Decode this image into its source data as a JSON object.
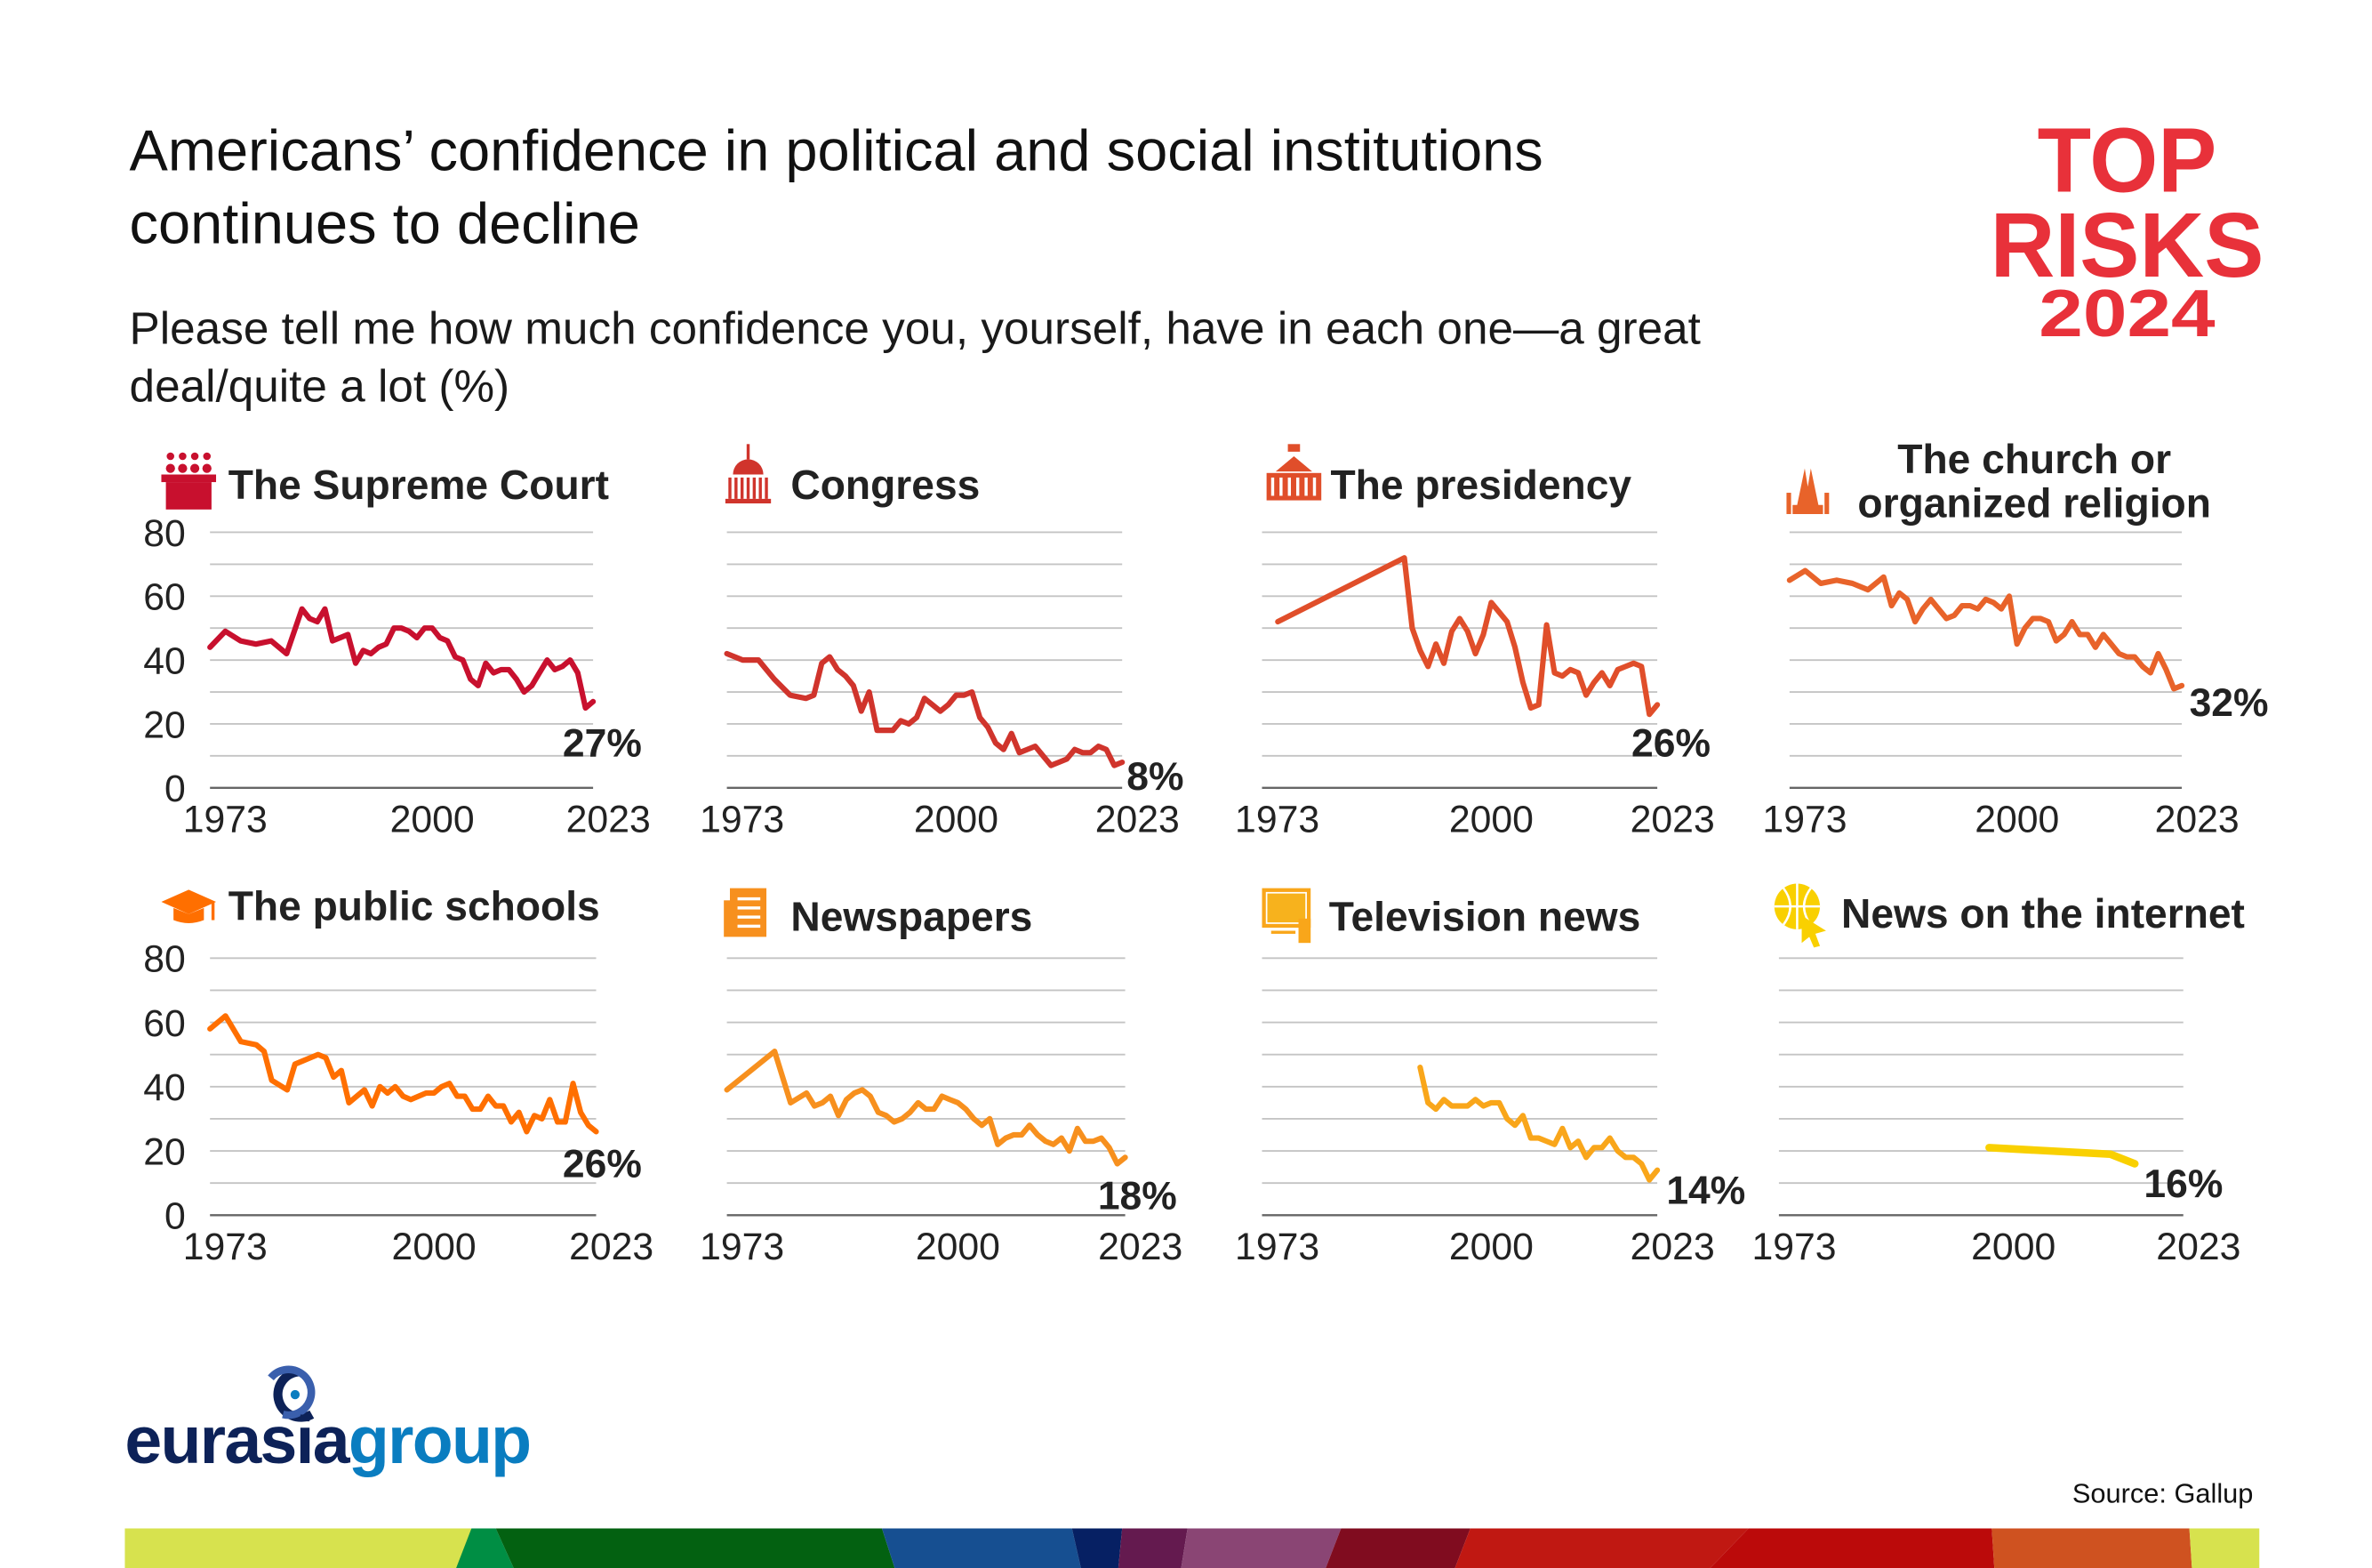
{
  "header": {
    "title_lines": [
      "Americans’ confidence in political and social institutions",
      "continues to decline"
    ],
    "subtitle_lines": [
      "Please tell me how much confidence you, yourself, have in each one—a great",
      "deal/quite a lot (%)"
    ]
  },
  "brand": {
    "top_risks_lines": [
      "TOP",
      "RISKS",
      "2024"
    ],
    "top_risks_color": "#e8313a",
    "logo_text_a": "eurasia",
    "logo_text_b": "group",
    "logo_color_a": "#0d2258",
    "logo_color_b": "#0a7dc0"
  },
  "footer": {
    "source": "Source: Gallup"
  },
  "chart_data": [
    {
      "type": "line",
      "title_lines": [
        "The Supreme Court"
      ],
      "icon": "supreme-court-icon",
      "color": "#c8102e",
      "end_label": "27%",
      "xlim": [
        1973,
        2023
      ],
      "ylim": [
        0,
        80
      ],
      "yticks": [
        "0",
        "20",
        "40",
        "60",
        "80"
      ],
      "xticks": [
        "1973",
        "2000",
        "2023"
      ],
      "grid": true,
      "x": [
        1973,
        1975,
        1977,
        1979,
        1981,
        1983,
        1985,
        1986,
        1987,
        1988,
        1989,
        1990,
        1991,
        1992,
        1993,
        1994,
        1995,
        1996,
        1997,
        1998,
        1999,
        2000,
        2001,
        2002,
        2003,
        2004,
        2005,
        2006,
        2007,
        2008,
        2009,
        2010,
        2011,
        2012,
        2013,
        2014,
        2015,
        2016,
        2017,
        2018,
        2019,
        2020,
        2021,
        2022,
        2023
      ],
      "y": [
        44,
        49,
        46,
        45,
        46,
        42,
        56,
        53,
        52,
        56,
        46,
        47,
        48,
        39,
        43,
        42,
        44,
        45,
        50,
        50,
        49,
        47,
        50,
        50,
        47,
        46,
        41,
        40,
        34,
        32,
        39,
        36,
        37,
        37,
        34,
        30,
        32,
        36,
        40,
        37,
        38,
        40,
        36,
        25,
        27
      ]
    },
    {
      "type": "line",
      "title_lines": [
        "Congress"
      ],
      "icon": "capitol-icon",
      "color": "#d0342c",
      "end_label": "8%",
      "xlim": [
        1973,
        2023
      ],
      "ylim": [
        0,
        80
      ],
      "xticks": [
        "1973",
        "2000",
        "2023"
      ],
      "grid": true,
      "x": [
        1973,
        1975,
        1977,
        1979,
        1981,
        1983,
        1984,
        1985,
        1986,
        1987,
        1988,
        1989,
        1990,
        1991,
        1992,
        1993,
        1994,
        1995,
        1996,
        1997,
        1998,
        1999,
        2000,
        2001,
        2002,
        2003,
        2004,
        2005,
        2006,
        2007,
        2008,
        2009,
        2010,
        2011,
        2012,
        2013,
        2014,
        2015,
        2016,
        2017,
        2018,
        2019,
        2020,
        2021,
        2022,
        2023
      ],
      "y": [
        42,
        40,
        40,
        34,
        29,
        28,
        29,
        39,
        41,
        37,
        35,
        32,
        24,
        30,
        18,
        18,
        18,
        21,
        20,
        22,
        28,
        26,
        24,
        26,
        29,
        29,
        30,
        22,
        19,
        14,
        12,
        17,
        11,
        12,
        13,
        10,
        7,
        8,
        9,
        12,
        11,
        11,
        13,
        12,
        7,
        8
      ]
    },
    {
      "type": "line",
      "title_lines": [
        "The presidency"
      ],
      "icon": "white-house-icon",
      "color": "#e04e2a",
      "end_label": "26%",
      "xlim": [
        1973,
        2023
      ],
      "ylim": [
        0,
        80
      ],
      "xticks": [
        "1973",
        "2000",
        "2023"
      ],
      "grid": true,
      "x": [
        1975,
        1991,
        1992,
        1993,
        1994,
        1995,
        1996,
        1997,
        1998,
        1999,
        2000,
        2001,
        2002,
        2003,
        2004,
        2005,
        2006,
        2007,
        2008,
        2009,
        2010,
        2011,
        2012,
        2013,
        2014,
        2015,
        2016,
        2017,
        2018,
        2019,
        2020,
        2021,
        2022,
        2023
      ],
      "y": [
        52,
        72,
        50,
        43,
        38,
        45,
        39,
        49,
        53,
        49,
        42,
        48,
        58,
        55,
        52,
        44,
        33,
        25,
        26,
        51,
        36,
        35,
        37,
        36,
        29,
        33,
        36,
        32,
        37,
        38,
        39,
        38,
        23,
        26
      ]
    },
    {
      "type": "line",
      "title_lines": [
        "The church or",
        "organized religion"
      ],
      "icon": "praying-hands-icon",
      "color": "#e8632a",
      "end_label": "32%",
      "xlim": [
        1973,
        2023
      ],
      "ylim": [
        0,
        80
      ],
      "xticks": [
        "1973",
        "2000",
        "2023"
      ],
      "grid": true,
      "x": [
        1973,
        1975,
        1977,
        1979,
        1981,
        1983,
        1985,
        1986,
        1987,
        1988,
        1989,
        1990,
        1991,
        1993,
        1994,
        1995,
        1996,
        1997,
        1998,
        1999,
        2000,
        2001,
        2002,
        2003,
        2004,
        2005,
        2006,
        2007,
        2008,
        2009,
        2010,
        2011,
        2012,
        2013,
        2014,
        2015,
        2016,
        2017,
        2018,
        2019,
        2020,
        2021,
        2022,
        2023
      ],
      "y": [
        65,
        68,
        64,
        65,
        64,
        62,
        66,
        57,
        61,
        59,
        52,
        56,
        59,
        53,
        54,
        57,
        57,
        56,
        59,
        58,
        56,
        60,
        45,
        50,
        53,
        53,
        52,
        46,
        48,
        52,
        48,
        48,
        44,
        48,
        45,
        42,
        41,
        41,
        38,
        36,
        42,
        37,
        31,
        32
      ]
    },
    {
      "type": "line",
      "title_lines": [
        "The public schools"
      ],
      "icon": "graduation-cap-icon",
      "color": "#ff6f00",
      "end_label": "26%",
      "xlim": [
        1973,
        2023
      ],
      "ylim": [
        0,
        80
      ],
      "yticks": [
        "0",
        "20",
        "40",
        "60",
        "80"
      ],
      "xticks": [
        "1973",
        "2000",
        "2023"
      ],
      "grid": true,
      "x": [
        1973,
        1975,
        1977,
        1979,
        1980,
        1981,
        1983,
        1984,
        1985,
        1986,
        1987,
        1988,
        1989,
        1990,
        1991,
        1993,
        1994,
        1995,
        1996,
        1997,
        1998,
        1999,
        2000,
        2001,
        2002,
        2003,
        2004,
        2005,
        2006,
        2007,
        2008,
        2009,
        2010,
        2011,
        2012,
        2013,
        2014,
        2015,
        2016,
        2017,
        2018,
        2019,
        2020,
        2021,
        2022,
        2023
      ],
      "y": [
        58,
        62,
        54,
        53,
        51,
        42,
        39,
        47,
        48,
        49,
        50,
        49,
        43,
        45,
        35,
        39,
        34,
        40,
        38,
        40,
        37,
        36,
        37,
        38,
        38,
        40,
        41,
        37,
        37,
        33,
        33,
        37,
        34,
        34,
        29,
        32,
        26,
        31,
        30,
        36,
        29,
        29,
        41,
        32,
        28,
        26
      ]
    },
    {
      "type": "line",
      "title_lines": [
        "Newspapers"
      ],
      "icon": "newspaper-icon",
      "color": "#f7901e",
      "end_label": "18%",
      "xlim": [
        1973,
        2023
      ],
      "ylim": [
        0,
        80
      ],
      "xticks": [
        "1973",
        "2000",
        "2023"
      ],
      "grid": true,
      "x": [
        1973,
        1979,
        1981,
        1983,
        1984,
        1985,
        1986,
        1987,
        1988,
        1989,
        1990,
        1991,
        1992,
        1993,
        1994,
        1995,
        1996,
        1997,
        1998,
        1999,
        2000,
        2001,
        2002,
        2003,
        2004,
        2005,
        2006,
        2007,
        2008,
        2009,
        2010,
        2011,
        2012,
        2013,
        2014,
        2015,
        2016,
        2017,
        2018,
        2019,
        2020,
        2021,
        2022,
        2023
      ],
      "y": [
        39,
        51,
        35,
        38,
        34,
        35,
        37,
        31,
        36,
        38,
        39,
        37,
        32,
        31,
        29,
        30,
        32,
        35,
        33,
        33,
        37,
        36,
        35,
        33,
        30,
        28,
        30,
        22,
        24,
        25,
        25,
        28,
        25,
        23,
        22,
        24,
        20,
        27,
        23,
        23,
        24,
        21,
        16,
        18
      ]
    },
    {
      "type": "line",
      "title_lines": [
        "Television news"
      ],
      "icon": "television-icon",
      "color": "#f9a61a",
      "end_label": "14%",
      "xlim": [
        1973,
        2023
      ],
      "ylim": [
        0,
        80
      ],
      "xticks": [
        "1973",
        "2000",
        "2023"
      ],
      "grid": true,
      "x": [
        1993,
        1994,
        1995,
        1996,
        1997,
        1998,
        1999,
        2000,
        2001,
        2002,
        2003,
        2004,
        2005,
        2006,
        2007,
        2008,
        2009,
        2010,
        2011,
        2012,
        2013,
        2014,
        2015,
        2016,
        2017,
        2018,
        2019,
        2020,
        2021,
        2022,
        2023
      ],
      "y": [
        46,
        35,
        33,
        36,
        34,
        34,
        34,
        36,
        34,
        35,
        35,
        30,
        28,
        31,
        24,
        24,
        23,
        22,
        27,
        21,
        23,
        18,
        21,
        21,
        24,
        20,
        18,
        18,
        16,
        11,
        14
      ]
    },
    {
      "type": "line",
      "title_lines": [
        "News on the internet"
      ],
      "icon": "globe-cursor-icon",
      "color": "#f9d000",
      "end_label": "16%",
      "xlim": [
        1973,
        2023
      ],
      "ylim": [
        0,
        80
      ],
      "xticks": [
        "1973",
        "2000",
        "2023"
      ],
      "grid": true,
      "x": [
        1999,
        2014,
        2017
      ],
      "y": [
        21,
        19,
        16
      ]
    }
  ]
}
